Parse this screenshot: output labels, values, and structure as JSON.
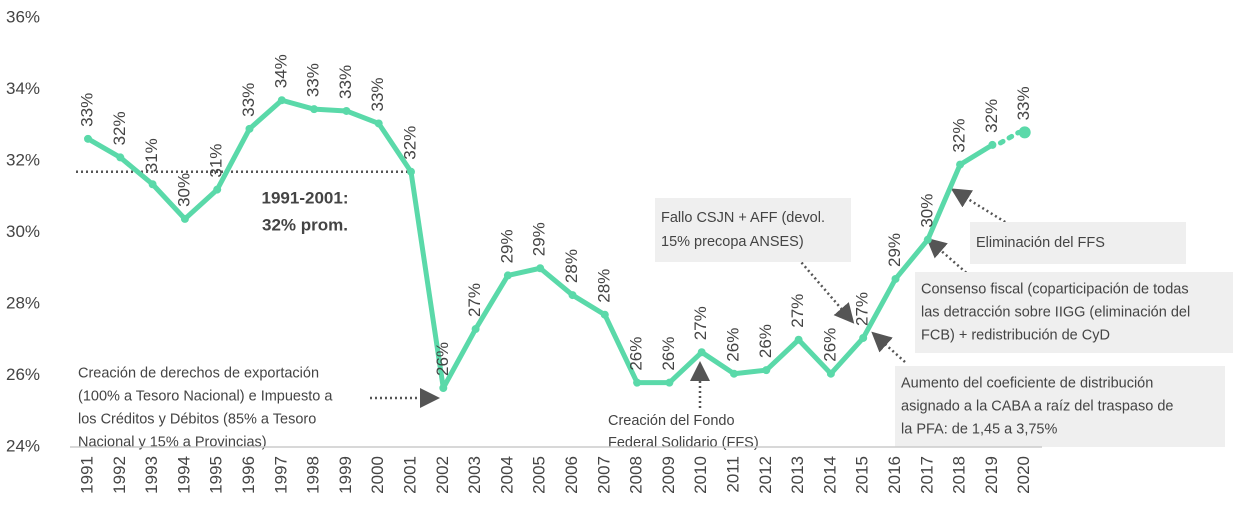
{
  "chart_data": {
    "type": "line",
    "categories": [
      "1991",
      "1992",
      "1993",
      "1994",
      "1995",
      "1996",
      "1997",
      "1998",
      "1999",
      "2000",
      "2001",
      "2002",
      "2003",
      "2004",
      "2005",
      "2006",
      "2007",
      "2008",
      "2009",
      "2010",
      "2011",
      "2012",
      "2013",
      "2014",
      "2015",
      "2016",
      "2017",
      "2018",
      "2019",
      "2020"
    ],
    "values": [
      32.62,
      32.1,
      31.35,
      30.38,
      31.2,
      32.9,
      33.7,
      33.45,
      33.4,
      33.05,
      31.7,
      25.65,
      27.3,
      28.8,
      29.0,
      28.25,
      27.7,
      25.8,
      25.8,
      26.65,
      26.05,
      26.15,
      27.0,
      26.05,
      27.05,
      28.7,
      29.8,
      31.9,
      32.45,
      32.8
    ],
    "value_labels": [
      "33%",
      "32%",
      "31%",
      "30%",
      "31%",
      "33%",
      "34%",
      "33%",
      "33%",
      "33%",
      "32%",
      "26%",
      "27%",
      "29%",
      "29%",
      "28%",
      "28%",
      "26%",
      "26%",
      "27%",
      "26%",
      "26%",
      "27%",
      "26%",
      "27%",
      "29%",
      "30%",
      "32%",
      "32%",
      "33%"
    ],
    "color": "#5ad9a9",
    "dotted_last": true,
    "ylim": [
      24,
      36
    ],
    "yticks": [
      {
        "value": 24,
        "label": "24%"
      },
      {
        "value": 26,
        "label": "26%"
      },
      {
        "value": 28,
        "label": "28%"
      },
      {
        "value": 30,
        "label": "30%"
      },
      {
        "value": 32,
        "label": "32%"
      },
      {
        "value": 34,
        "label": "34%"
      },
      {
        "value": 36,
        "label": "36%"
      }
    ],
    "reference_line": {
      "value": 31.7,
      "from": "1991",
      "to": "2001",
      "label": [
        "1991-2001:",
        "32% prom."
      ]
    },
    "annotations": [
      {
        "lines": [
          "Creación de derechos de exportación",
          "(100% a Tesoro Nacional) e Impuesto a",
          "los Créditos y Débitos (85% a Tesoro",
          "Nacional y 15% a Provincias)"
        ],
        "box": false
      },
      {
        "lines": [
          "Creación del Fondo",
          "Federal Solidario (FFS)"
        ],
        "box": false
      },
      {
        "lines": [
          "Fallo CSJN + AFF (devol.",
          "15% precopa ANSES)"
        ],
        "box": true
      },
      {
        "lines": [
          "Eliminación del FFS"
        ],
        "box": true
      },
      {
        "lines": [
          "Consenso fiscal (coparticipación de todas",
          "las detracción sobre IIGG (eliminación del",
          "FCB) + redistribución de CyD"
        ],
        "box": true
      },
      {
        "lines": [
          "Aumento del coeficiente de distribución",
          "asignado a la CABA a raíz del traspaso de",
          "la PFA: de 1,45 a 3,75%"
        ],
        "box": true
      }
    ]
  }
}
